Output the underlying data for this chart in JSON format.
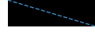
{
  "x": [
    0,
    1
  ],
  "y": [
    1,
    0
  ],
  "line_color": "#3a8fc7",
  "line_style": "--",
  "line_width": 1.0,
  "background_color": "#000000",
  "fig_bg_color": "#ffffff",
  "xlim": [
    0,
    1
  ],
  "ylim": [
    0,
    1
  ]
}
